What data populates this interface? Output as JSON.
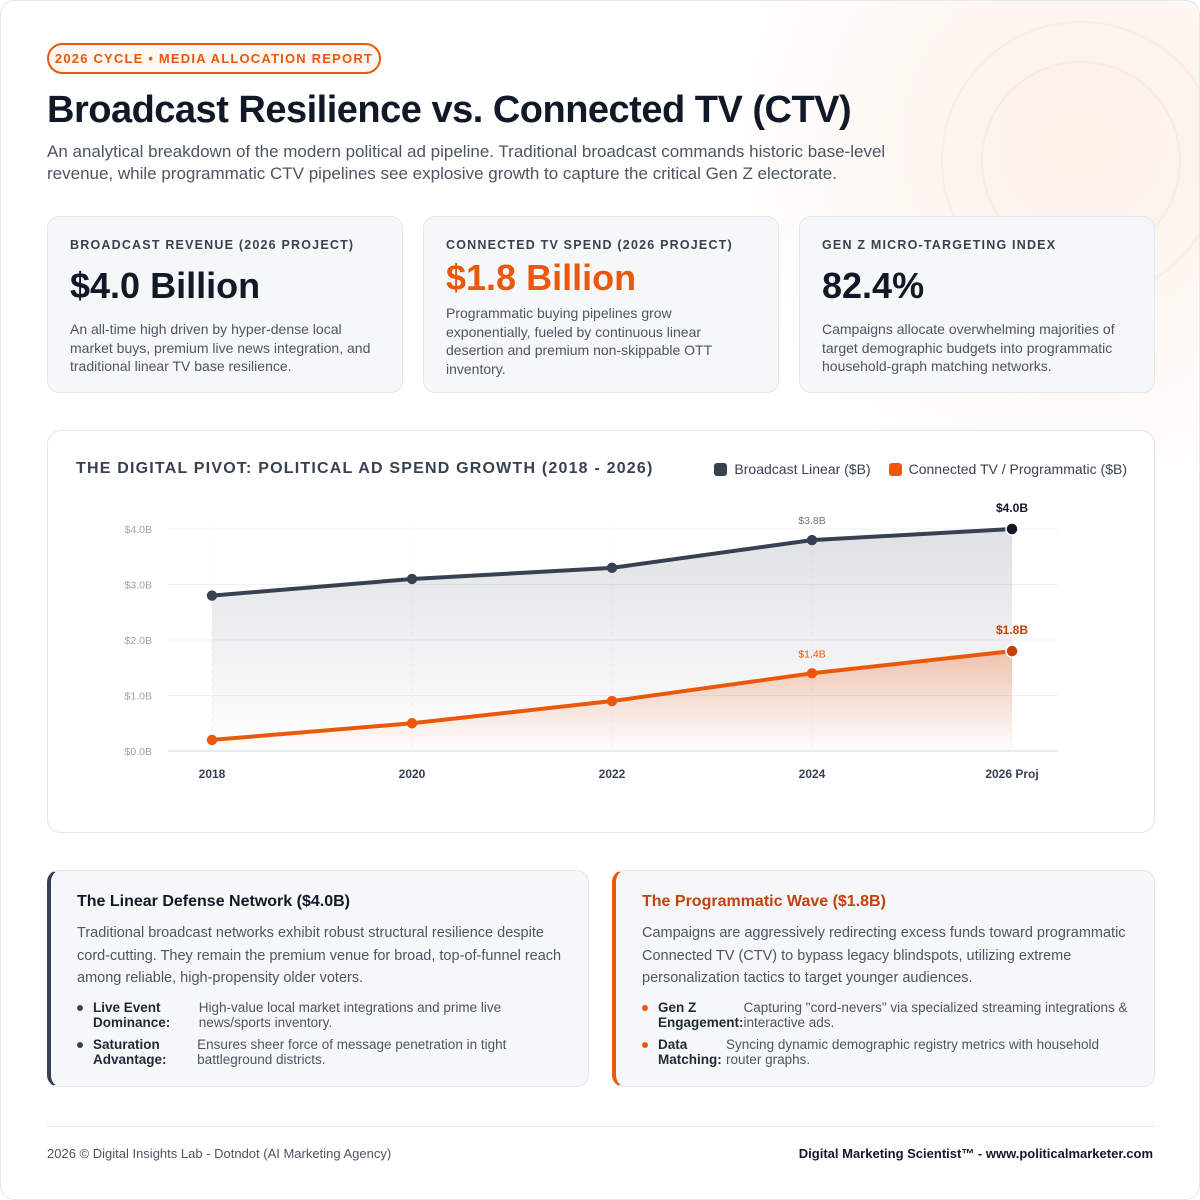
{
  "badge": "2026 CYCLE • MEDIA ALLOCATION REPORT",
  "title": "Broadcast Resilience vs. Connected TV (CTV)",
  "subtitle": "An analytical breakdown of the modern political ad pipeline. Traditional broadcast commands historic base-level revenue, while programmatic CTV pipelines see explosive growth to capture the critical Gen Z electorate.",
  "kpis": [
    {
      "label": "BROADCAST REVENUE (2026 PROJECT)",
      "value": "$4.0 Billion",
      "desc": "An all-time high driven by hyper-dense local market buys, premium live news integration, and traditional linear TV base resilience."
    },
    {
      "label": "CONNECTED TV SPEND (2026 PROJECT)",
      "value": "$1.8 Billion",
      "desc": "Programmatic buying pipelines grow exponentially, fueled by continuous linear desertion and premium non-skippable OTT inventory."
    },
    {
      "label": "GEN Z MICRO-TARGETING INDEX",
      "value": "82.4%",
      "desc": "Campaigns allocate overwhelming majorities of target demographic budgets into programmatic household-graph matching networks."
    }
  ],
  "colors": {
    "broadcast": "#374151",
    "ctv": "#ea580c",
    "accent": "#ea580c"
  },
  "chart_data": {
    "type": "line",
    "title": "THE DIGITAL PIVOT: POLITICAL AD SPEND GROWTH (2018 - 2026)",
    "categories": [
      "2018",
      "2020",
      "2022",
      "2024",
      "2026 Proj"
    ],
    "series": [
      {
        "name": "Broadcast Linear ($B)",
        "values": [
          2.8,
          3.1,
          3.3,
          3.8,
          4.0
        ],
        "color": "#374151"
      },
      {
        "name": "Connected TV / Programmatic ($B)",
        "values": [
          0.2,
          0.5,
          0.9,
          1.4,
          1.8
        ],
        "color": "#ea580c"
      }
    ],
    "y_ticks": [
      "$0.0B",
      "$1.0B",
      "$2.0B",
      "$3.0B",
      "$4.0B"
    ],
    "ylim": [
      0,
      4
    ],
    "data_labels": [
      {
        "series": 0,
        "index": 3,
        "text": "$3.8B"
      },
      {
        "series": 0,
        "index": 4,
        "text": "$4.0B"
      },
      {
        "series": 1,
        "index": 3,
        "text": "$1.4B"
      },
      {
        "series": 1,
        "index": 4,
        "text": "$1.8B"
      }
    ],
    "legend_position": "top-right",
    "grid": true
  },
  "details": [
    {
      "title": "The Linear Defense Network ($4.0B)",
      "body": "Traditional broadcast networks exhibit robust structural resilience despite cord-cutting. They remain the premium venue for broad, top-of-funnel reach among reliable, high-propensity older voters.",
      "bullets": [
        {
          "key": "Live Event Dominance:",
          "text": "High-value local market integrations and prime live news/sports inventory."
        },
        {
          "key": "Saturation Advantage:",
          "text": "Ensures sheer force of message penetration in tight battleground districts."
        }
      ]
    },
    {
      "title": "The Programmatic Wave ($1.8B)",
      "body": "Campaigns are aggressively redirecting excess funds toward programmatic Connected TV (CTV) to bypass legacy blindspots, utilizing extreme personalization tactics to target younger audiences.",
      "bullets": [
        {
          "key": "Gen Z Engagement:",
          "text": "Capturing \"cord-nevers\" via specialized streaming integrations & interactive ads."
        },
        {
          "key": "Data Matching:",
          "text": "Syncing dynamic demographic registry metrics with household router graphs."
        }
      ]
    }
  ],
  "footer": {
    "left": "2026 © Digital Insights Lab - Dotndot (AI Marketing Agency)",
    "right": "Digital Marketing Scientist™ - www.politicalmarketer.com"
  }
}
